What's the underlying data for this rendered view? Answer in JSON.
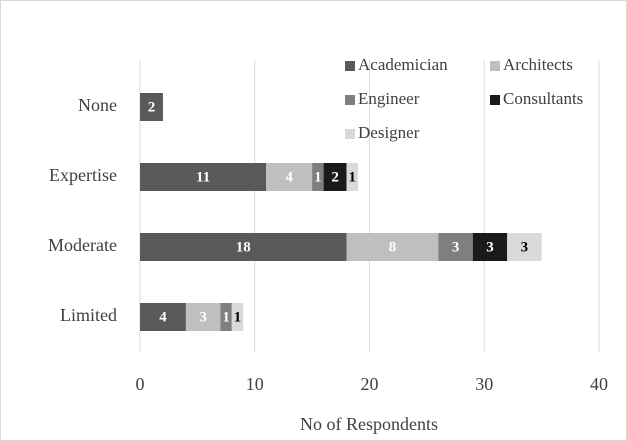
{
  "chart_data": {
    "type": "bar",
    "orientation": "horizontal",
    "stacked": true,
    "x_label": "No of Respondents",
    "categories": [
      "None",
      "Expertise",
      "Moderate",
      "Limited"
    ],
    "series": [
      {
        "name": "Academician",
        "color": "#595959",
        "values": [
          2,
          11,
          18,
          4
        ]
      },
      {
        "name": "Architects",
        "color": "#bfbfbf",
        "values": [
          null,
          4,
          8,
          3
        ]
      },
      {
        "name": "Engineer",
        "color": "#7f7f7f",
        "values": [
          null,
          1,
          3,
          1
        ]
      },
      {
        "name": "Consultants",
        "color": "#1a1a1a",
        "values": [
          null,
          2,
          3,
          null
        ]
      },
      {
        "name": "Designer",
        "color": "#d9d9d9",
        "values": [
          null,
          1,
          3,
          1
        ]
      }
    ],
    "xlim": [
      0,
      40
    ],
    "xticks": [
      0,
      10,
      20,
      30,
      40
    ],
    "grid": true,
    "legend": "top-right"
  }
}
